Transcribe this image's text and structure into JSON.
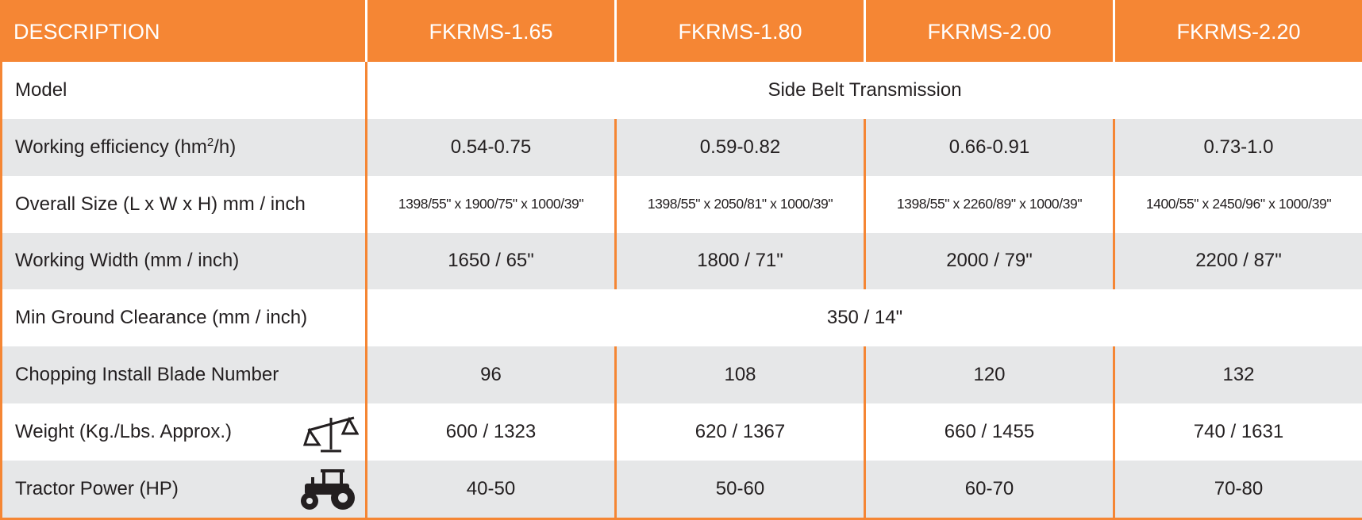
{
  "header": [
    "DESCRIPTION",
    "FKRMS-1.65",
    "FKRMS-1.80",
    "FKRMS-2.00",
    "FKRMS-2.20"
  ],
  "rows": [
    {
      "label": "Model",
      "cells": [
        "Side Belt Transmission"
      ]
    },
    {
      "label": {
        "text": "Working efficiency (hm",
        "sup": "2",
        "tail": "/h)"
      },
      "cells": [
        "0.54-0.75",
        "0.59-0.82",
        "0.66-0.91",
        "0.73-1.0"
      ]
    },
    {
      "label": "Overall Size (L x W x H) mm / inch",
      "cells": [
        "1398/55\" x 1900/75\" x 1000/39\"",
        "1398/55\" x 2050/81\" x 1000/39\"",
        "1398/55\" x 2260/89\" x 1000/39\"",
        "1400/55\" x 2450/96\" x 1000/39\""
      ]
    },
    {
      "label": "Working Width (mm / inch)",
      "cells": [
        "1650 / 65\"",
        "1800 / 71\"",
        "2000 / 79\"",
        "2200 / 87\""
      ]
    },
    {
      "label": "Min Ground Clearance (mm / inch)",
      "cells": [
        "350 / 14\""
      ]
    },
    {
      "label": "Chopping Install Blade Number",
      "cells": [
        "96",
        "108",
        "120",
        "132"
      ]
    },
    {
      "label": "Weight (Kg./Lbs. Approx.)",
      "cells": [
        "600 / 1323",
        "620 / 1367",
        "660 / 1455",
        "740 / 1631"
      ]
    },
    {
      "label": "Tractor Power (HP)",
      "cells": [
        "40-50",
        "50-60",
        "60-70",
        "70-80"
      ]
    }
  ]
}
